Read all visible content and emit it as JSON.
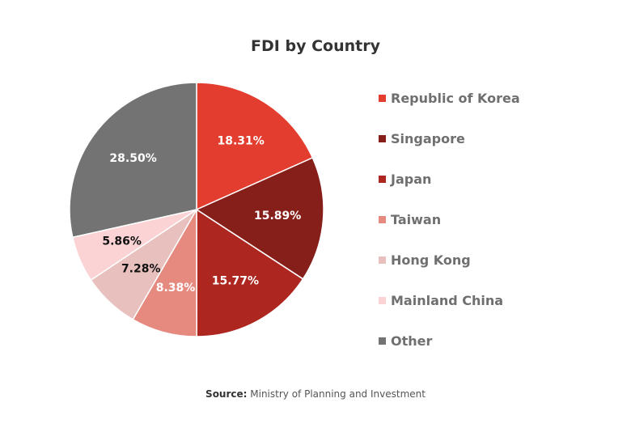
{
  "chart_data": {
    "type": "pie",
    "title": "FDI by Country",
    "categories": [
      "Republic of Korea",
      "Singapore",
      "Japan",
      "Taiwan",
      "Hong Kong",
      "Mainland China",
      "Other"
    ],
    "values": [
      18.31,
      15.89,
      15.77,
      8.38,
      7.28,
      5.86,
      28.5
    ],
    "data_labels": [
      "18.31%",
      "15.89%",
      "15.77%",
      "8.38%",
      "7.28%",
      "5.86%",
      "28.50%"
    ],
    "colors": [
      "#e33d30",
      "#861e1a",
      "#ad2720",
      "#e6897f",
      "#e8c1bf",
      "#fbd3d5",
      "#737373"
    ],
    "label_colors": [
      "#ffffff",
      "#ffffff",
      "#ffffff",
      "#ffffff",
      "#111111",
      "#111111",
      "#ffffff"
    ],
    "legend_position": "right",
    "start": "12 o'clock",
    "direction": "clockwise"
  },
  "source": {
    "key": "Source:",
    "text": " Ministry of Planning and Investment"
  }
}
